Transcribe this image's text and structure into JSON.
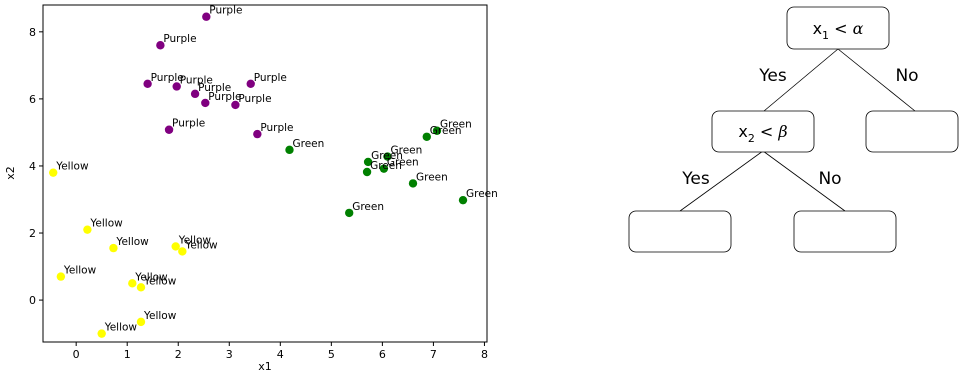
{
  "chart_data": {
    "type": "scatter",
    "xlabel": "x1",
    "ylabel": "x2",
    "xlim": [
      -0.65,
      8.05
    ],
    "ylim": [
      -1.25,
      8.8
    ],
    "xticks": [
      0,
      1,
      2,
      3,
      4,
      5,
      6,
      7,
      8
    ],
    "yticks": [
      0,
      2,
      4,
      6,
      8
    ],
    "grid": false,
    "colors": {
      "Purple": "#800080",
      "Green": "#008000",
      "Yellow": "#ffff00"
    },
    "points": [
      {
        "x": 2.55,
        "y": 8.45,
        "label": "Purple"
      },
      {
        "x": 1.65,
        "y": 7.6,
        "label": "Purple"
      },
      {
        "x": 1.4,
        "y": 6.45,
        "label": "Purple"
      },
      {
        "x": 1.97,
        "y": 6.37,
        "label": "Purple"
      },
      {
        "x": 2.33,
        "y": 6.15,
        "label": "Purple"
      },
      {
        "x": 3.42,
        "y": 6.45,
        "label": "Purple"
      },
      {
        "x": 2.53,
        "y": 5.88,
        "label": "Purple"
      },
      {
        "x": 3.12,
        "y": 5.82,
        "label": "Purple"
      },
      {
        "x": 1.82,
        "y": 5.08,
        "label": "Purple"
      },
      {
        "x": 3.55,
        "y": 4.95,
        "label": "Purple"
      },
      {
        "x": 4.18,
        "y": 4.48,
        "label": "Green"
      },
      {
        "x": 7.07,
        "y": 5.05,
        "label": "Green"
      },
      {
        "x": 6.87,
        "y": 4.87,
        "label": "Green"
      },
      {
        "x": 6.1,
        "y": 4.28,
        "label": "Green"
      },
      {
        "x": 5.72,
        "y": 4.12,
        "label": "Green"
      },
      {
        "x": 6.03,
        "y": 3.92,
        "label": "Green"
      },
      {
        "x": 5.7,
        "y": 3.82,
        "label": "Green"
      },
      {
        "x": 6.6,
        "y": 3.48,
        "label": "Green"
      },
      {
        "x": 7.58,
        "y": 2.98,
        "label": "Green"
      },
      {
        "x": 5.35,
        "y": 2.6,
        "label": "Green"
      },
      {
        "x": -0.45,
        "y": 3.8,
        "label": "Yellow"
      },
      {
        "x": 0.22,
        "y": 2.1,
        "label": "Yellow"
      },
      {
        "x": 0.73,
        "y": 1.55,
        "label": "Yellow"
      },
      {
        "x": 1.95,
        "y": 1.6,
        "label": "Yellow"
      },
      {
        "x": 2.08,
        "y": 1.45,
        "label": "Yellow"
      },
      {
        "x": -0.3,
        "y": 0.7,
        "label": "Yellow"
      },
      {
        "x": 1.1,
        "y": 0.5,
        "label": "Yellow"
      },
      {
        "x": 1.27,
        "y": 0.38,
        "label": "Yellow"
      },
      {
        "x": 1.27,
        "y": -0.65,
        "label": "Yellow"
      },
      {
        "x": 0.5,
        "y": -1.0,
        "label": "Yellow"
      }
    ]
  },
  "tree": {
    "root": {
      "var": "x",
      "sub": "1",
      "op": "<",
      "threshold": "α"
    },
    "left": {
      "var": "x",
      "sub": "2",
      "op": "<",
      "threshold": "β"
    },
    "yes_label_1": "Yes",
    "no_label_1": "No",
    "yes_label_2": "Yes",
    "no_label_2": "No"
  }
}
